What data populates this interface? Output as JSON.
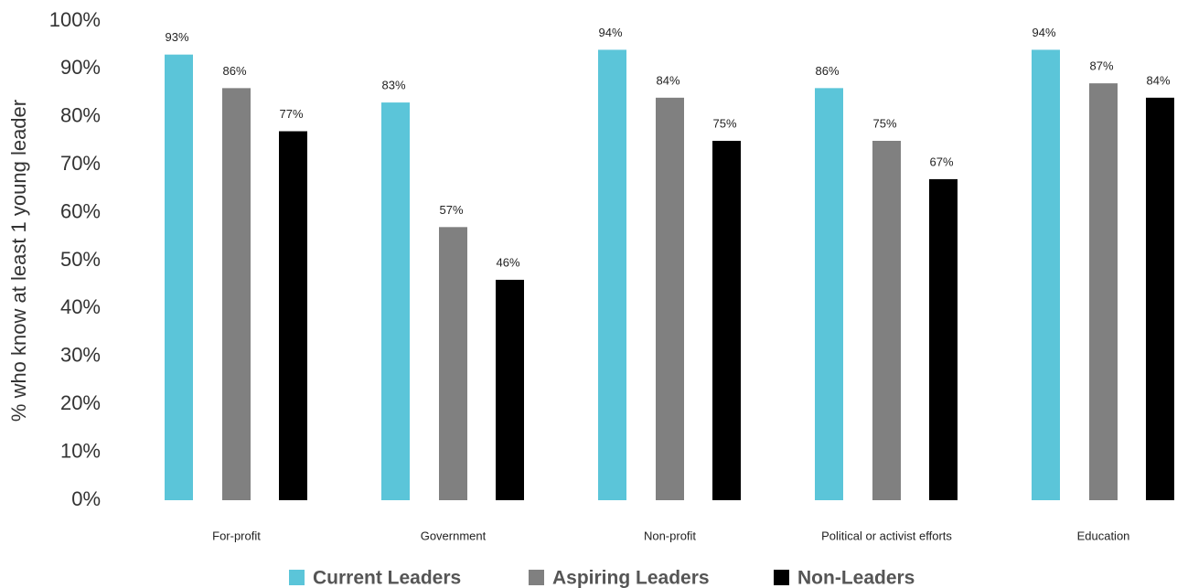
{
  "chart_data": {
    "type": "bar",
    "y_label": "% who know at least 1 young leader",
    "categories": [
      "For-profit",
      "Government",
      "Non-profit",
      "Political or activist efforts",
      "Education"
    ],
    "series": [
      {
        "name": "Current Leaders",
        "color": "#5bc5d9",
        "values": [
          93,
          83,
          94,
          86,
          94
        ],
        "value_labels": [
          "93%",
          "83%",
          "94%",
          "86%",
          "94%"
        ]
      },
      {
        "name": "Aspiring Leaders",
        "color": "#808080",
        "values": [
          86,
          57,
          84,
          75,
          87
        ],
        "value_labels": [
          "86%",
          "57%",
          "84%",
          "75%",
          "87%"
        ]
      },
      {
        "name": "Non-Leaders",
        "color": "#000000",
        "values": [
          77,
          46,
          75,
          67,
          84
        ],
        "value_labels": [
          "77%",
          "46%",
          "75%",
          "67%",
          "84%"
        ]
      }
    ],
    "ylim": [
      0,
      100
    ],
    "yticks": [
      {
        "value": 0,
        "label": "0%"
      },
      {
        "value": 10,
        "label": "10%"
      },
      {
        "value": 20,
        "label": "20%"
      },
      {
        "value": 30,
        "label": "30%"
      },
      {
        "value": 40,
        "label": "40%"
      },
      {
        "value": 50,
        "label": "50%"
      },
      {
        "value": 60,
        "label": "60%"
      },
      {
        "value": 70,
        "label": "70%"
      },
      {
        "value": 80,
        "label": "80%"
      },
      {
        "value": 90,
        "label": "90%"
      },
      {
        "value": 100,
        "label": "100%"
      }
    ],
    "grid": false,
    "legend": "bottom"
  }
}
